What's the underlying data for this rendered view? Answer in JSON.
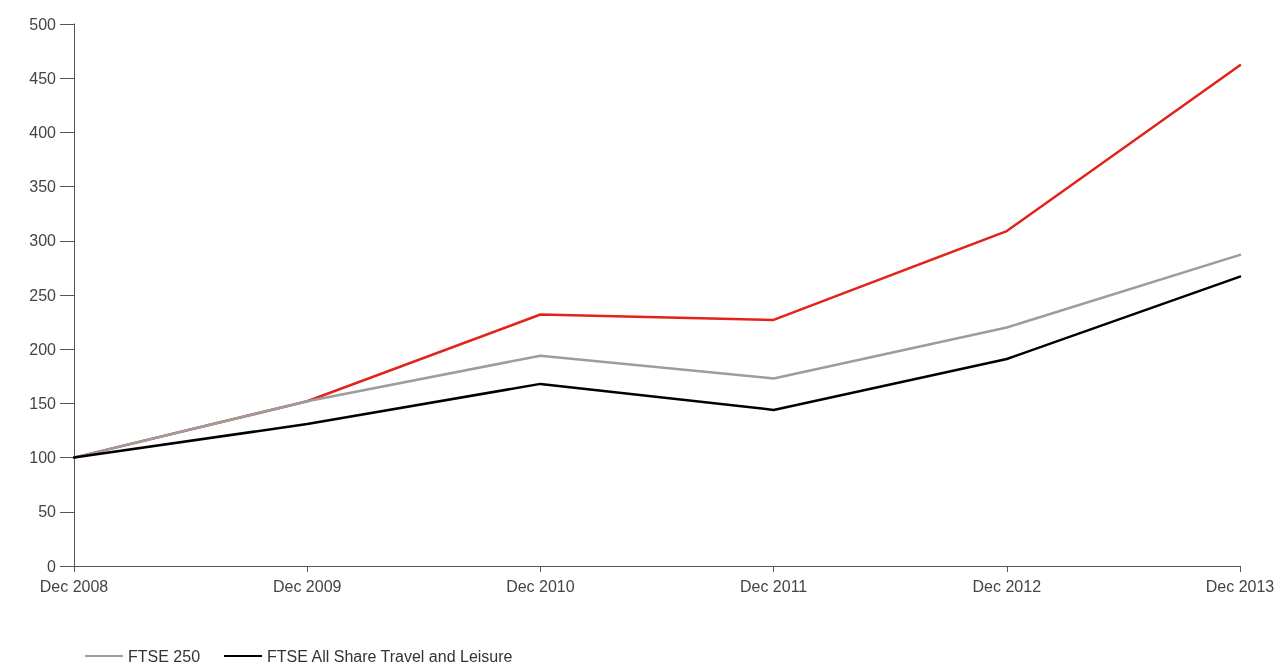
{
  "chart_data": {
    "type": "line",
    "categories": [
      "Dec 2008",
      "Dec 2009",
      "Dec 2010",
      "Dec 2011",
      "Dec 2012",
      "Dec 2013"
    ],
    "series": [
      {
        "color": "#e2231a",
        "values": [
          100,
          152,
          232,
          227,
          309,
          462
        ]
      },
      {
        "name": "FTSE 250",
        "color": "#9d9d9c",
        "values": [
          100,
          152,
          194,
          173,
          220,
          287
        ]
      },
      {
        "name": "FTSE All Share Travel and Leisure",
        "color": "#000000",
        "values": [
          100,
          131,
          168,
          144,
          191,
          267
        ]
      }
    ],
    "ylim": [
      0,
      500
    ],
    "yticks": [
      0,
      50,
      100,
      150,
      200,
      250,
      300,
      350,
      400,
      450,
      500
    ],
    "grid": false,
    "legend": "bottom left",
    "marker": "none",
    "line_style": "solid"
  }
}
